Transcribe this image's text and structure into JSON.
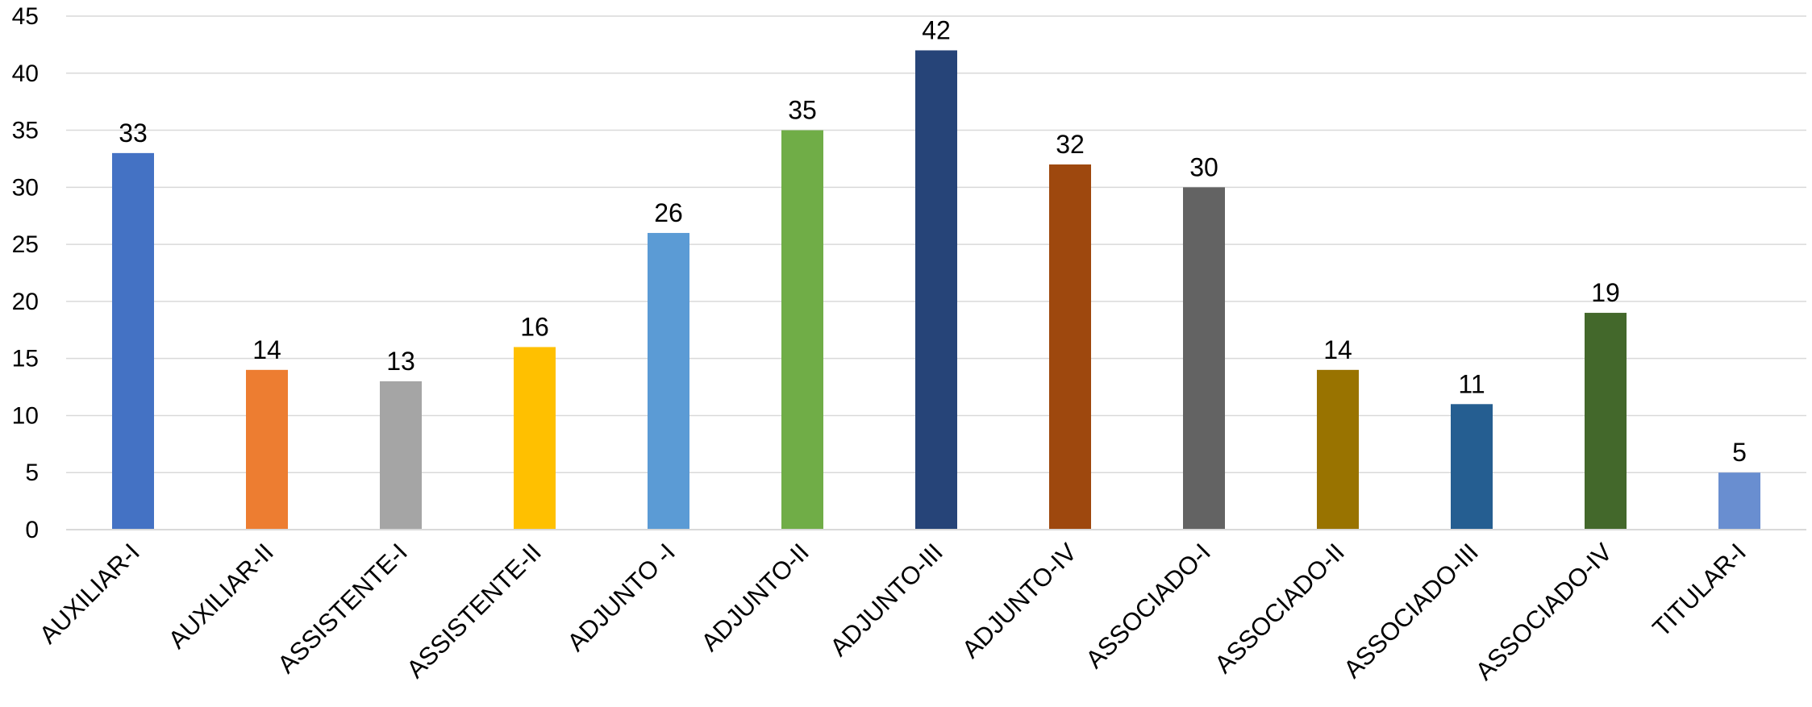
{
  "chart_data": {
    "type": "bar",
    "title": "",
    "xlabel": "",
    "ylabel": "",
    "ylim": [
      0,
      45
    ],
    "yticks": [
      0,
      5,
      10,
      15,
      20,
      25,
      30,
      35,
      40,
      45
    ],
    "grid": true,
    "legend": "none",
    "categories": [
      "AUXILIAR-I",
      "AUXILIAR-II",
      "ASSISTENTE-I",
      "ASSISTENTE-II",
      "ADJUNTO -I",
      "ADJUNTO-II",
      "ADJUNTO-III",
      "ADJUNTO-IV",
      "ASSOCIADO-I",
      "ASSOCIADO-II",
      "ASSOCIADO-III",
      "ASSOCIADO-IV",
      "TITULAR-I"
    ],
    "values": [
      33,
      14,
      13,
      16,
      26,
      35,
      42,
      32,
      30,
      14,
      11,
      19,
      5
    ],
    "colors": [
      "#4472C4",
      "#ED7D31",
      "#A5A5A5",
      "#FFC000",
      "#5B9BD5",
      "#70AD47",
      "#264478",
      "#9E480E",
      "#636363",
      "#997300",
      "#255E91",
      "#43682B",
      "#698ED0"
    ],
    "data_labels": true
  }
}
